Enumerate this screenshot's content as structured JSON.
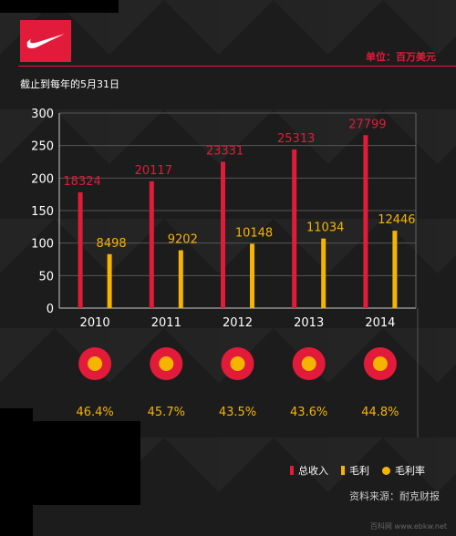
{
  "header": {
    "unit": "单位：百万美元",
    "subtitle": "截止到每年的5月31日"
  },
  "legend": {
    "revenue": "总收入",
    "profit": "毛利",
    "margin": "毛利率"
  },
  "footer": {
    "source": "资料来源：耐克财报",
    "watermark": "百科网 www.ebkw.net"
  },
  "colors": {
    "revenue": "#e31b3a",
    "profit": "#f5b400",
    "text": "#ffffff",
    "axis": "#bbbbbb"
  },
  "chart_data": {
    "type": "bar",
    "categories": [
      "2010",
      "2011",
      "2012",
      "2013",
      "2014"
    ],
    "y_ticks": [
      0,
      50,
      100,
      150,
      200,
      250,
      300
    ],
    "ylim": [
      0,
      300
    ],
    "series": [
      {
        "name": "总收入",
        "labels": [
          "18324",
          "20117",
          "23331",
          "25313",
          "27799"
        ],
        "bar_values": [
          178,
          195,
          225,
          244,
          266
        ]
      },
      {
        "name": "毛利",
        "labels": [
          "8498",
          "9202",
          "10148",
          "11034",
          "12446"
        ],
        "bar_values": [
          83,
          89,
          99,
          107,
          119
        ]
      }
    ],
    "margin": {
      "name": "毛利率",
      "labels": [
        "46.4%",
        "45.7%",
        "43.5%",
        "43.6%",
        "44.8%"
      ]
    },
    "grid": true
  }
}
